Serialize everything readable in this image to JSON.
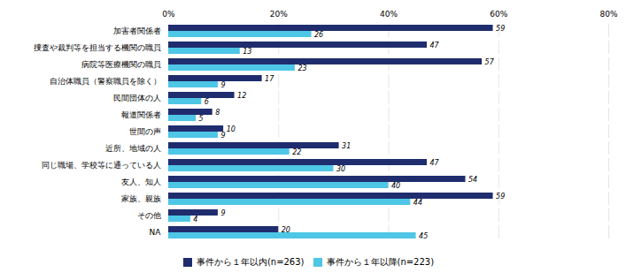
{
  "chart_data": {
    "type": "bar",
    "orientation": "horizontal",
    "categories": [
      "NA",
      "その他",
      "家族、親族",
      "友人、知人",
      "同じ職場、学校等に通っている人",
      "近所、地域の人",
      "世間の声",
      "報道関係者",
      "民間団体の人",
      "自治体職員（警察職員を除く）",
      "病院等医療機関の職員",
      "捜査や裁判等を担当する機関の職員",
      "加害者関係者"
    ],
    "series": [
      {
        "name": "事件から１年以内(n=263)",
        "color": "#1F2D6E",
        "values": [
          20,
          9,
          59,
          54,
          47,
          31,
          10,
          8,
          12,
          17,
          57,
          47,
          59
        ]
      },
      {
        "name": "事件から１年以降(n=223)",
        "color": "#4EC6E6",
        "values": [
          45,
          4,
          44,
          40,
          30,
          22,
          9,
          5,
          6,
          9,
          23,
          13,
          26
        ]
      }
    ],
    "xlim": [
      0,
      80
    ],
    "xticks": [
      {
        "value": 0,
        "label": "0%"
      },
      {
        "value": 20,
        "label": "20%"
      },
      {
        "value": 40,
        "label": "40%"
      },
      {
        "value": 60,
        "label": "60%"
      },
      {
        "value": 80,
        "label": "80%"
      }
    ],
    "grid": true,
    "legend": "bottom",
    "data_labels": true
  }
}
